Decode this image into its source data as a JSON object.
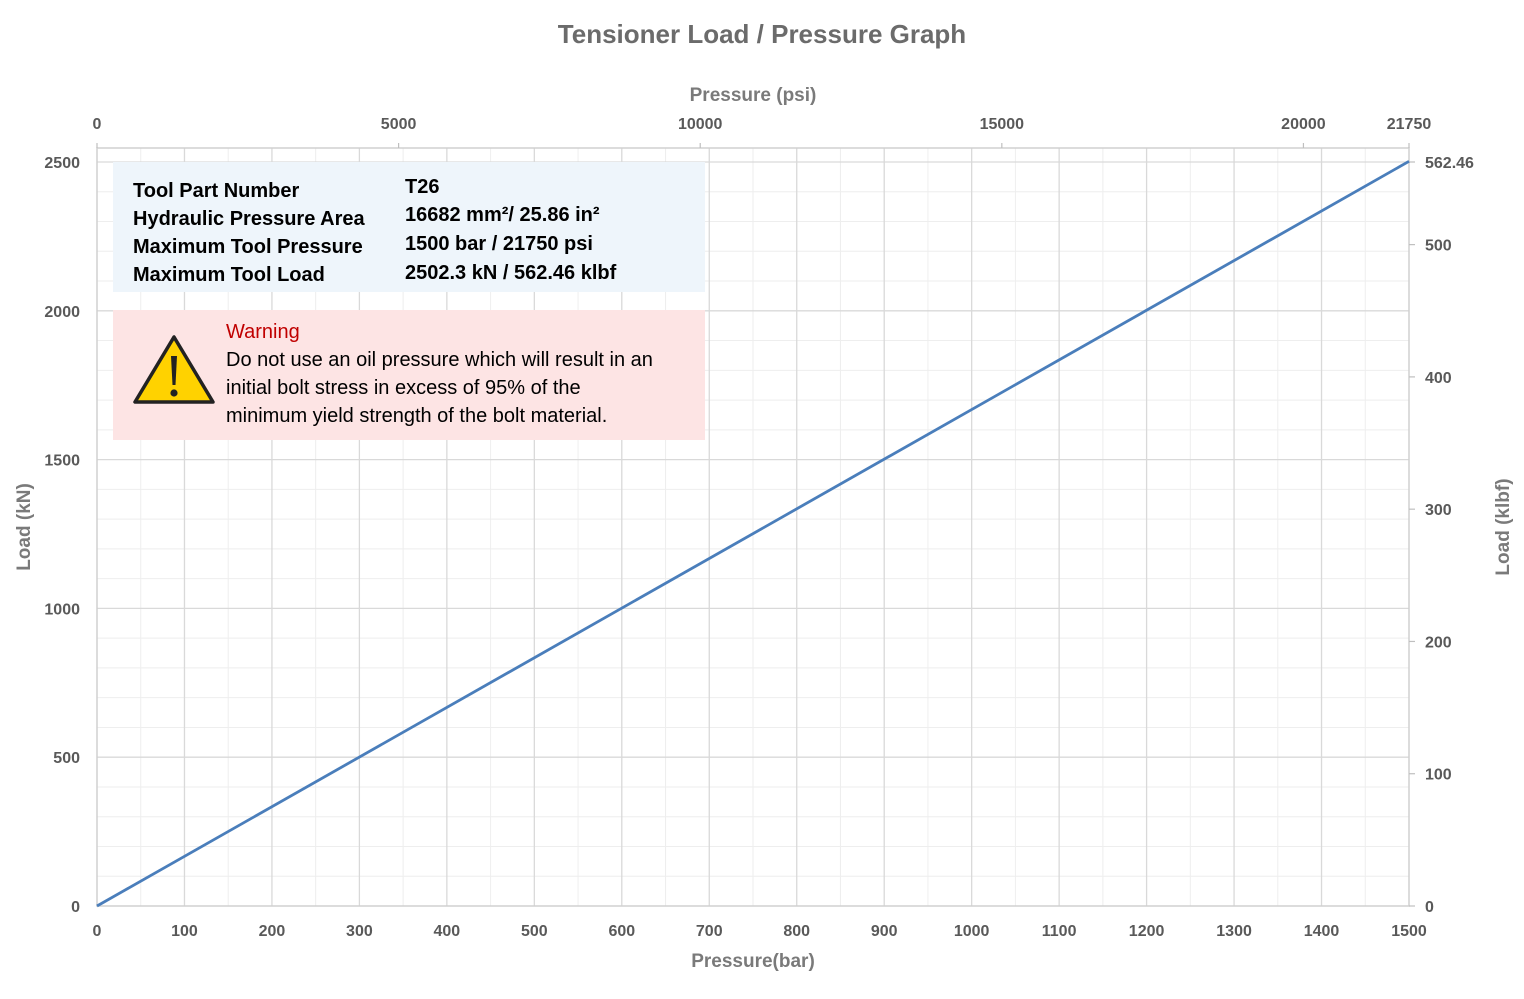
{
  "chart_data": {
    "type": "line",
    "title": "Tensioner Load / Pressure Graph",
    "xlabel": "Pressure(bar)",
    "ylabel": "Load (kN)",
    "x2label": "Pressure (psi)",
    "y2label": "Load (klbf)",
    "xlim": [
      0,
      1500
    ],
    "ylim": [
      0,
      2500
    ],
    "x2lim": [
      0,
      21750
    ],
    "y2lim": [
      0,
      562.46
    ],
    "x_ticks": [
      "0",
      "100",
      "200",
      "300",
      "400",
      "500",
      "600",
      "700",
      "800",
      "900",
      "1000",
      "1100",
      "1200",
      "1300",
      "1400",
      "1500"
    ],
    "y_ticks": [
      "0",
      "500",
      "1000",
      "1500",
      "2000",
      "2500"
    ],
    "x2_ticks": [
      "0",
      "5000",
      "10000",
      "15000",
      "20000",
      "21750"
    ],
    "y2_ticks": [
      "0",
      "100",
      "200",
      "300",
      "400",
      "500",
      "562.46"
    ],
    "grid": true,
    "series": [
      {
        "x": [
          0,
          1500
        ],
        "y": [
          0,
          2502.3
        ],
        "color": "#4a7ebb"
      }
    ]
  },
  "info": {
    "rows": [
      {
        "label": "Tool Part Number",
        "value": "T26"
      },
      {
        "label": "Hydraulic Pressure Area",
        "value": "16682 mm²/ 25.86 in²"
      },
      {
        "label": "Maximum Tool Pressure",
        "value": "1500 bar / 21750 psi"
      },
      {
        "label": "Maximum Tool Load",
        "value": "2502.3 kN / 562.46 klbf"
      }
    ]
  },
  "warning": {
    "title": "Warning",
    "lines": [
      "Do not use an oil pressure which will result in an",
      "initial bolt stress in excess of 95% of the",
      "minimum yield strength of the bolt material."
    ],
    "icon": "warning-triangle-icon"
  },
  "colors": {
    "line": "#4a7ebb",
    "info_bg": "#eef5fb",
    "warning_bg": "#fde4e4",
    "warning_title": "#c00000",
    "icon_fill": "#ffd200"
  }
}
